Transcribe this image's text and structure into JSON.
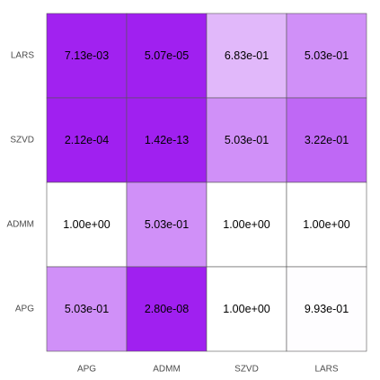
{
  "chart_data": {
    "type": "heatmap",
    "title": "",
    "xlabel": "",
    "ylabel": "",
    "x_categories": [
      "APG",
      "ADMM",
      "SZVD",
      "LARS"
    ],
    "y_categories": [
      "LARS",
      "SZVD",
      "ADMM",
      "APG"
    ],
    "values": [
      [
        0.00713,
        5.07e-05,
        0.683,
        0.503
      ],
      [
        0.000212,
        1.42e-13,
        0.503,
        0.322
      ],
      [
        1.0,
        0.503,
        1.0,
        1.0
      ],
      [
        0.503,
        2.8e-08,
        1.0,
        0.993
      ]
    ],
    "cell_labels": [
      [
        "7.13e-03",
        "5.07e-05",
        "6.83e-01",
        "5.03e-01"
      ],
      [
        "2.12e-04",
        "1.42e-13",
        "5.03e-01",
        "3.22e-01"
      ],
      [
        "1.00e+00",
        "5.03e-01",
        "1.00e+00",
        "1.00e+00"
      ],
      [
        "5.03e-01",
        "2.80e-08",
        "1.00e+00",
        "9.93e-01"
      ]
    ],
    "color_scale": {
      "low_color": "#a020f0",
      "high_color": "#ffffff"
    },
    "grid": false,
    "legend": "none"
  }
}
